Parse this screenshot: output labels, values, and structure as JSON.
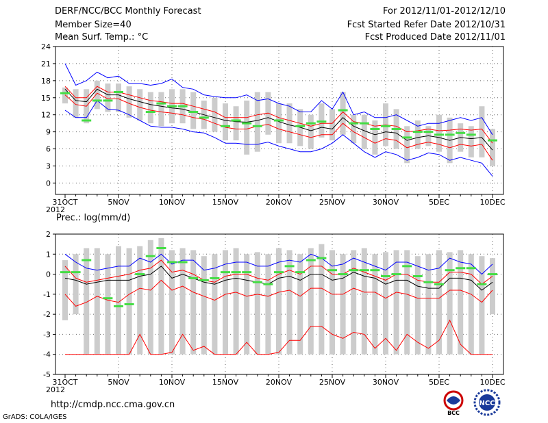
{
  "header": {
    "title": "DERF/NCC/BCC Monthly Forecast",
    "member": "Member Size=40",
    "variable": "Mean Surf. Temp.: °C",
    "period": "For 2012/11/01-2012/12/10",
    "started": "Fcst Started Refer Date 2012/10/31",
    "produced": "Fcst Produced Date 2012/11/01"
  },
  "footer": {
    "url": "http://cmdp.ncc.cma.gov.cn",
    "grads": "GrADS: COLA/IGES",
    "logo_bcc": "BCC",
    "logo_ncc": "NCC"
  },
  "colors": {
    "max": "#0000ff",
    "pct": "#ff0000",
    "mean": "#000000",
    "obs": "#44dd44",
    "box": "#cccccc",
    "grid": "#666666"
  },
  "chart_data": [
    {
      "type": "box-line",
      "title": "Mean Surf. Temp.: °C",
      "xlabel": "",
      "ylabel": "",
      "x_ticks": [
        "31OCT\n2012",
        "5NOV",
        "10NOV",
        "15NOV",
        "20NOV",
        "25NOV",
        "30NOV",
        "5DEC",
        "10DEC"
      ],
      "x_range": [
        0,
        40
      ],
      "ylim": [
        -2,
        24
      ],
      "y_ticks": [
        0,
        3,
        6,
        9,
        12,
        15,
        18,
        21,
        24
      ],
      "series": [
        {
          "name": "max",
          "values": [
            21.0,
            17.2,
            18.0,
            19.5,
            18.5,
            18.8,
            17.5,
            17.5,
            17.2,
            17.5,
            18.3,
            16.8,
            16.5,
            15.5,
            15.2,
            15.0,
            15.0,
            15.5,
            14.5,
            14.8,
            14.0,
            13.5,
            12.5,
            12.5,
            14.5,
            13.0,
            16.0,
            12.0,
            12.5,
            11.5,
            11.5,
            12.0,
            11.0,
            10.0,
            10.5,
            10.5,
            11.0,
            11.5,
            11.0,
            11.5,
            8.5
          ]
        },
        {
          "name": "p75",
          "values": [
            17.0,
            15.0,
            15.0,
            17.0,
            16.0,
            16.0,
            15.5,
            15.0,
            14.5,
            14.3,
            14.0,
            14.0,
            13.5,
            13.0,
            12.5,
            11.5,
            11.5,
            11.5,
            12.0,
            12.3,
            11.5,
            11.0,
            10.5,
            10.0,
            10.5,
            10.5,
            12.5,
            10.8,
            10.5,
            10.0,
            10.2,
            10.0,
            9.0,
            9.2,
            9.5,
            9.2,
            9.3,
            9.5,
            9.3,
            9.5,
            7.0
          ]
        },
        {
          "name": "mean",
          "values": [
            16.5,
            14.5,
            14.3,
            16.5,
            15.5,
            15.5,
            14.8,
            14.3,
            13.8,
            13.5,
            13.2,
            13.0,
            12.5,
            12.0,
            11.5,
            11.0,
            10.8,
            10.7,
            11.0,
            11.5,
            10.8,
            10.2,
            9.8,
            9.2,
            9.8,
            9.5,
            11.5,
            10.0,
            9.2,
            8.5,
            9.0,
            8.8,
            7.5,
            8.0,
            8.3,
            8.0,
            7.5,
            8.0,
            7.8,
            8.0,
            5.8
          ]
        },
        {
          "name": "p25",
          "values": [
            15.5,
            13.8,
            13.5,
            15.8,
            14.8,
            14.8,
            14.0,
            13.3,
            12.8,
            12.5,
            12.3,
            12.0,
            11.5,
            11.2,
            10.5,
            9.8,
            9.5,
            9.5,
            10.0,
            10.3,
            9.5,
            9.0,
            8.5,
            8.0,
            8.5,
            8.5,
            10.5,
            9.0,
            8.0,
            7.0,
            7.8,
            7.5,
            6.2,
            6.8,
            7.2,
            6.8,
            6.2,
            6.8,
            6.5,
            6.8,
            4.0
          ]
        },
        {
          "name": "min",
          "values": [
            12.8,
            11.5,
            11.5,
            14.5,
            13.0,
            12.8,
            12.0,
            11.0,
            10.0,
            9.8,
            9.8,
            9.5,
            9.0,
            8.8,
            8.0,
            7.0,
            7.0,
            6.8,
            6.8,
            7.2,
            6.5,
            6.0,
            5.5,
            5.5,
            6.0,
            7.0,
            8.5,
            7.0,
            5.5,
            4.5,
            5.5,
            5.0,
            4.0,
            4.5,
            5.3,
            5.0,
            4.0,
            4.5,
            4.0,
            3.5,
            1.2
          ]
        },
        {
          "name": "obs",
          "values": [
            15.8,
            null,
            11.0,
            14.5,
            14.5,
            16.0,
            null,
            null,
            12.5,
            14.0,
            13.5,
            13.5,
            12.5,
            11.5,
            null,
            10.0,
            11.0,
            10.5,
            10.0,
            null,
            11.0,
            null,
            10.0,
            10.5,
            10.8,
            null,
            12.8,
            10.5,
            10.5,
            9.5,
            10.0,
            9.5,
            8.0,
            9.0,
            9.0,
            8.5,
            8.5,
            8.8,
            8.5,
            null,
            7.5
          ]
        },
        {
          "name": "box_top",
          "values": [
            16.8,
            16.5,
            16.5,
            18.0,
            17.5,
            17.5,
            17.0,
            16.5,
            16.0,
            16.0,
            16.5,
            16.5,
            16.0,
            14.5,
            15.0,
            14.0,
            13.5,
            14.5,
            16.0,
            16.0,
            14.0,
            14.0,
            13.0,
            12.0,
            14.0,
            13.0,
            16.0,
            12.0,
            12.0,
            11.0,
            14.0,
            13.0,
            10.0,
            11.0,
            10.0,
            12.0,
            11.5,
            10.5,
            10.0,
            13.5,
            9.5
          ]
        },
        {
          "name": "box_bottom",
          "values": [
            14.0,
            11.5,
            10.5,
            13.0,
            12.5,
            12.5,
            11.5,
            11.0,
            10.5,
            10.0,
            10.5,
            10.5,
            9.5,
            9.5,
            9.0,
            7.5,
            7.5,
            5.0,
            5.5,
            8.5,
            7.0,
            7.0,
            6.5,
            6.0,
            8.0,
            7.5,
            8.5,
            7.0,
            6.0,
            5.0,
            6.5,
            6.0,
            3.5,
            6.0,
            6.5,
            5.5,
            3.5,
            5.5,
            4.5,
            4.5,
            3.0
          ]
        }
      ]
    },
    {
      "type": "box-line",
      "title": "Prec.: log(mm/d)",
      "xlabel": "",
      "ylabel": "",
      "x_ticks": [
        "31OCT\n2012",
        "5NOV",
        "10NOV",
        "15NOV",
        "20NOV",
        "25NOV",
        "30NOV",
        "5DEC",
        "10DEC"
      ],
      "x_range": [
        0,
        40
      ],
      "ylim": [
        -5,
        2
      ],
      "y_ticks": [
        -5,
        -4,
        -3,
        -2,
        -1,
        0,
        1,
        2
      ],
      "series": [
        {
          "name": "max",
          "values": [
            1.0,
            0.6,
            0.3,
            0.2,
            0.3,
            0.4,
            0.4,
            0.8,
            0.6,
            1.0,
            0.5,
            0.7,
            0.7,
            0.2,
            0.3,
            0.5,
            0.6,
            0.6,
            0.4,
            0.4,
            0.6,
            0.7,
            0.6,
            1.0,
            0.8,
            0.4,
            0.5,
            0.8,
            0.6,
            0.4,
            0.2,
            0.6,
            0.6,
            0.4,
            0.2,
            0.3,
            0.8,
            0.6,
            0.5,
            0.0,
            0.5
          ]
        },
        {
          "name": "p75",
          "values": [
            0.4,
            -0.2,
            -0.4,
            -0.3,
            -0.2,
            -0.1,
            0.0,
            0.2,
            0.3,
            0.7,
            0.1,
            0.2,
            0.0,
            -0.3,
            -0.4,
            -0.1,
            0.0,
            0.0,
            -0.2,
            -0.3,
            0.0,
            0.2,
            0.0,
            0.4,
            0.4,
            0.0,
            0.0,
            0.3,
            0.1,
            -0.1,
            -0.3,
            0.0,
            0.0,
            -0.3,
            -0.4,
            -0.4,
            0.1,
            0.1,
            0.0,
            -0.5,
            -0.1
          ]
        },
        {
          "name": "mean",
          "values": [
            -0.2,
            -0.3,
            -0.5,
            -0.4,
            -0.3,
            -0.3,
            -0.3,
            -0.1,
            0.0,
            0.4,
            -0.2,
            0.0,
            -0.2,
            -0.4,
            -0.5,
            -0.3,
            -0.2,
            -0.3,
            -0.4,
            -0.5,
            -0.2,
            -0.1,
            -0.3,
            0.0,
            0.0,
            -0.3,
            -0.2,
            0.1,
            -0.1,
            -0.2,
            -0.5,
            -0.3,
            -0.3,
            -0.6,
            -0.7,
            -0.7,
            -0.2,
            -0.2,
            -0.3,
            -0.8,
            -0.4
          ]
        },
        {
          "name": "p25",
          "values": [
            -1.0,
            -1.6,
            -1.4,
            -1.1,
            -1.3,
            -1.4,
            -1.0,
            -0.7,
            -0.8,
            -0.3,
            -0.8,
            -0.6,
            -0.9,
            -1.1,
            -1.3,
            -1.0,
            -0.9,
            -1.1,
            -1.0,
            -1.1,
            -0.9,
            -0.8,
            -1.1,
            -0.7,
            -0.7,
            -1.0,
            -1.0,
            -0.7,
            -0.9,
            -0.9,
            -1.2,
            -0.9,
            -1.0,
            -1.2,
            -1.2,
            -1.2,
            -0.8,
            -0.8,
            -1.0,
            -1.4,
            -0.8
          ]
        },
        {
          "name": "p10",
          "values": [
            -4.0,
            -4.0,
            -4.0,
            -4.0,
            -4.0,
            -4.0,
            -4.0,
            -3.0,
            -4.0,
            -4.0,
            -3.9,
            -3.0,
            -3.8,
            -3.6,
            -4.0,
            -4.0,
            -4.0,
            -3.4,
            -4.0,
            -4.0,
            -3.9,
            -3.3,
            -3.3,
            -2.6,
            -2.6,
            -3.0,
            -3.2,
            -2.9,
            -3.0,
            -3.7,
            -3.2,
            -3.8,
            -3.0,
            -3.4,
            -3.7,
            -3.3,
            -2.3,
            -3.5,
            -4.0,
            -4.0,
            -4.0
          ]
        },
        {
          "name": "obs",
          "values": [
            0.1,
            0.1,
            0.7,
            null,
            -1.2,
            -1.6,
            -1.5,
            0.0,
            0.9,
            1.3,
            0.6,
            0.6,
            -0.2,
            -0.3,
            -0.2,
            0.1,
            0.1,
            0.1,
            -0.4,
            -0.5,
            0.1,
            0.4,
            0.1,
            0.7,
            0.8,
            0.2,
            0.0,
            0.2,
            0.2,
            0.2,
            -0.1,
            0.0,
            0.4,
            -0.1,
            -0.4,
            -0.5,
            0.2,
            0.3,
            0.3,
            -0.5,
            0.0
          ]
        },
        {
          "name": "box_top",
          "values": [
            0.7,
            1.0,
            1.3,
            1.3,
            1.0,
            1.4,
            1.3,
            1.4,
            1.7,
            1.8,
            1.2,
            1.3,
            1.2,
            0.9,
            1.0,
            1.2,
            1.3,
            1.0,
            1.1,
            1.0,
            1.3,
            1.2,
            1.0,
            1.3,
            1.5,
            1.2,
            1.0,
            1.2,
            1.3,
            1.0,
            1.1,
            1.2,
            1.2,
            0.9,
            1.0,
            1.2,
            1.1,
            1.2,
            1.0,
            0.9,
            0.8
          ]
        },
        {
          "name": "box_bottom",
          "values": [
            -2.3,
            -2.0,
            -4.0,
            -4.0,
            -4.0,
            -4.0,
            -4.0,
            -4.0,
            -4.0,
            -4.0,
            -4.0,
            -4.0,
            -4.0,
            -4.0,
            -4.0,
            -4.0,
            -4.0,
            -4.0,
            -4.0,
            -4.0,
            -4.0,
            -4.0,
            -4.0,
            -4.0,
            -4.0,
            -4.0,
            -4.0,
            -4.0,
            -4.0,
            -4.0,
            -4.0,
            -4.0,
            -4.0,
            -4.0,
            -4.0,
            -4.0,
            -4.0,
            -4.0,
            -4.0,
            -4.0,
            -2.0
          ]
        }
      ]
    }
  ]
}
